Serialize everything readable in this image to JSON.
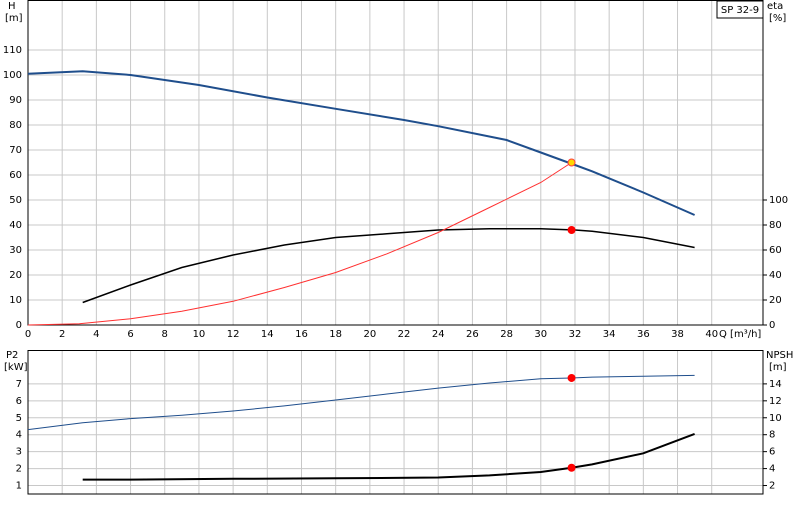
{
  "chart_data": [
    {
      "type": "line",
      "title": "SP 32-9",
      "xlabel": "Q [m³/h]",
      "ylabel": "H",
      "yunit": "[m]",
      "y2label": "eta",
      "y2unit": "[%]",
      "xlim": [
        0,
        43
      ],
      "xticks": [
        0,
        2,
        4,
        6,
        8,
        10,
        12,
        14,
        16,
        18,
        20,
        22,
        24,
        26,
        28,
        30,
        32,
        34,
        36,
        38,
        40
      ],
      "ylim": [
        0,
        130
      ],
      "yticks": [
        0,
        10,
        20,
        30,
        40,
        50,
        60,
        70,
        80,
        90,
        100,
        110
      ],
      "y2lim": [
        0,
        260
      ],
      "y2ticks": [
        0,
        20,
        40,
        60,
        80,
        100
      ],
      "grid": true,
      "series": [
        {
          "color": "#1f4e8c",
          "width": 2,
          "x": [
            0,
            3.2,
            6,
            10,
            14,
            18,
            22,
            24,
            28,
            30,
            32,
            33,
            36,
            39
          ],
          "values": [
            100.5,
            101.5,
            100,
            96,
            91,
            86.5,
            82,
            79.5,
            74,
            69,
            64,
            61.5,
            53,
            44
          ]
        },
        {
          "color": "#000000",
          "width": 1.5,
          "axis": "y2",
          "x": [
            3.2,
            6,
            9,
            12,
            15,
            18,
            21,
            24,
            27,
            30,
            32,
            33,
            36,
            39
          ],
          "values": [
            18,
            32,
            46,
            56,
            64,
            70,
            73,
            76,
            77,
            77,
            76,
            75,
            70,
            62
          ]
        },
        {
          "color": "#ff3030",
          "width": 1,
          "x": [
            0,
            3,
            6,
            9,
            12,
            15,
            18,
            21,
            24,
            27,
            30,
            31.8
          ],
          "values": [
            0,
            0.5,
            2.5,
            5.5,
            9.5,
            15,
            21,
            28.5,
            37,
            47,
            57,
            65
          ]
        },
        {
          "color": "#ff0000",
          "marker": true,
          "axis": "y2",
          "x": [
            31.8
          ],
          "values": [
            76
          ]
        },
        {
          "color": "#ffd700",
          "marker": true,
          "outline": "#ff4040",
          "x": [
            31.8
          ],
          "values": [
            65
          ]
        }
      ]
    },
    {
      "type": "line",
      "ylabel": "P2",
      "yunit": "[kW]",
      "y2label": "NPSH",
      "y2unit": "[m]",
      "xlim": [
        0,
        43
      ],
      "ylim": [
        0.5,
        9
      ],
      "yticks": [
        1,
        2,
        3,
        4,
        5,
        6,
        7
      ],
      "y2lim": [
        1,
        18
      ],
      "y2ticks": [
        2,
        4,
        6,
        8,
        10,
        12,
        14
      ],
      "grid": true,
      "series": [
        {
          "color": "#1f4e8c",
          "width": 1,
          "x": [
            0,
            3.2,
            6,
            9,
            12,
            15,
            18,
            21,
            24,
            27,
            30,
            31.8,
            33,
            36,
            39
          ],
          "values": [
            4.3,
            4.7,
            4.95,
            5.15,
            5.4,
            5.7,
            6.05,
            6.4,
            6.75,
            7.05,
            7.3,
            7.35,
            7.4,
            7.45,
            7.5
          ]
        },
        {
          "color": "#000000",
          "width": 2,
          "axis": "y2",
          "x": [
            3.2,
            6,
            12,
            18,
            24,
            27,
            30,
            31.8,
            33,
            36,
            39
          ],
          "values": [
            2.7,
            2.7,
            2.8,
            2.85,
            2.95,
            3.2,
            3.6,
            4.1,
            4.5,
            5.8,
            8.1
          ]
        },
        {
          "color": "#ff0000",
          "marker": true,
          "x": [
            31.8
          ],
          "values": [
            7.35
          ]
        },
        {
          "color": "#ff0000",
          "marker": true,
          "axis": "y2",
          "x": [
            31.8
          ],
          "values": [
            4.1
          ]
        }
      ]
    }
  ]
}
